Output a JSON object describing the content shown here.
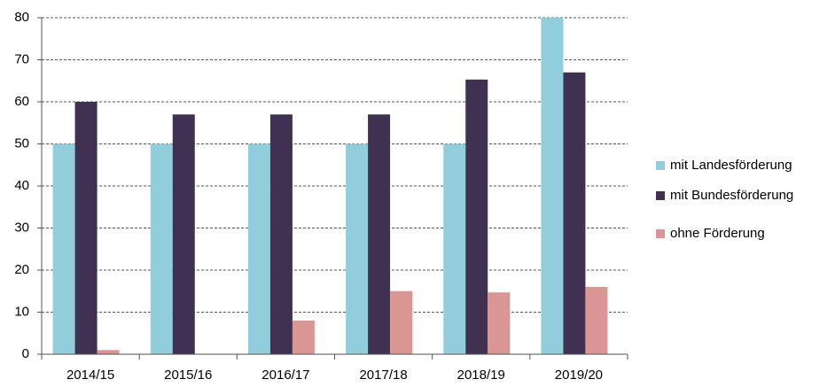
{
  "chart_data": {
    "type": "bar",
    "categories": [
      "2014/15",
      "2015/16",
      "2016/17",
      "2017/18",
      "2018/19",
      "2019/20"
    ],
    "series": [
      {
        "name": "mit Landesförderung",
        "color": "#92cddc",
        "values": [
          50,
          50,
          50,
          50,
          50,
          80
        ]
      },
      {
        "name": "mit Bundesförderung",
        "color": "#403152",
        "values": [
          60,
          57,
          57,
          57,
          65.3,
          67
        ]
      },
      {
        "name": "ohne Förderung",
        "color": "#d99694",
        "values": [
          1,
          0,
          8,
          15,
          14.7,
          16
        ]
      }
    ],
    "ylim": [
      0,
      80
    ],
    "yticks": [
      0,
      10,
      20,
      30,
      40,
      50,
      60,
      70,
      80
    ],
    "grid": true,
    "legend": "right"
  }
}
